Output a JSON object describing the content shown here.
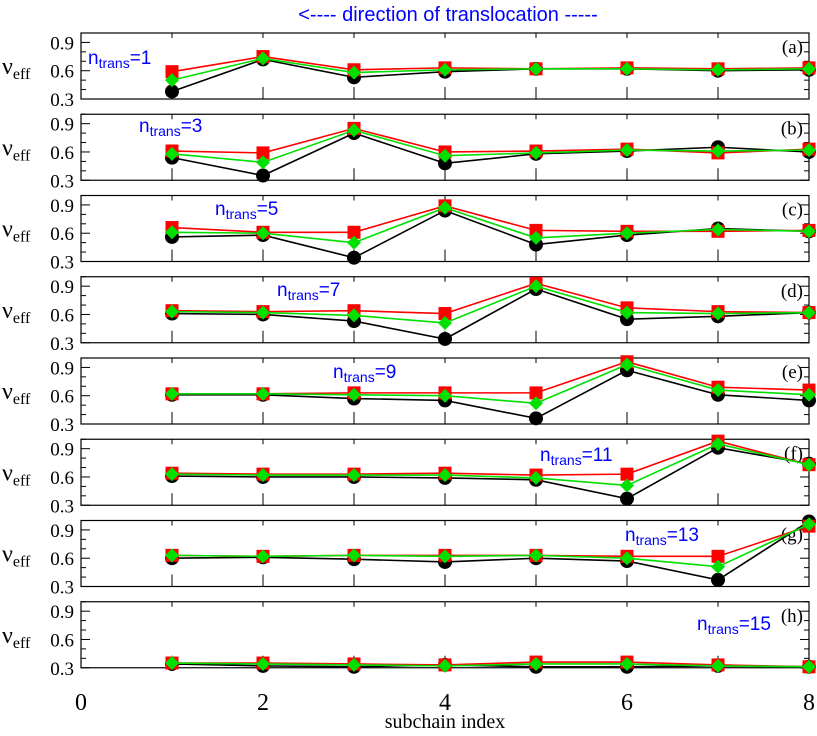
{
  "header_annotation": "<---- direction of translocation -----",
  "xlabel": "subchain index",
  "ylabel_main": "ν",
  "ylabel_sub": "eff",
  "ntrans_main": "n",
  "ntrans_sub": "trans",
  "colors": {
    "red_series": "#ff0000",
    "green_series": "#00e000",
    "black_series": "#000000",
    "annotation": "#0000ff",
    "axis": "#000000"
  },
  "chart_data": {
    "type": "line",
    "xlim": [
      0,
      8
    ],
    "x_ticks": [
      "0",
      "2",
      "4",
      "6",
      "8"
    ],
    "ylim": [
      0.3,
      1.0
    ],
    "y_ticks": [
      "0.3",
      "0.6",
      "0.9"
    ],
    "grid": false,
    "legend": "none",
    "x": [
      1,
      2,
      3,
      4,
      5,
      6,
      7,
      8
    ],
    "panels": [
      {
        "label": "(a)",
        "ntrans": "=1",
        "red": [
          0.59,
          0.75,
          0.61,
          0.63,
          0.62,
          0.63,
          0.62,
          0.63
        ],
        "green": [
          0.5,
          0.73,
          0.58,
          0.61,
          0.62,
          0.62,
          0.61,
          0.62
        ],
        "black": [
          0.38,
          0.72,
          0.53,
          0.59,
          0.62,
          0.62,
          0.6,
          0.61
        ]
      },
      {
        "label": "(b)",
        "ntrans": "=3",
        "red": [
          0.61,
          0.59,
          0.85,
          0.6,
          0.61,
          0.63,
          0.59,
          0.63
        ],
        "green": [
          0.58,
          0.49,
          0.83,
          0.56,
          0.59,
          0.62,
          0.61,
          0.62
        ],
        "black": [
          0.54,
          0.35,
          0.8,
          0.48,
          0.58,
          0.61,
          0.65,
          0.6
        ]
      },
      {
        "label": "(c)",
        "ntrans": "=5",
        "red": [
          0.66,
          0.61,
          0.61,
          0.89,
          0.63,
          0.62,
          0.62,
          0.63
        ],
        "green": [
          0.61,
          0.6,
          0.5,
          0.87,
          0.55,
          0.6,
          0.64,
          0.62
        ],
        "black": [
          0.56,
          0.58,
          0.34,
          0.84,
          0.48,
          0.58,
          0.65,
          0.62
        ]
      },
      {
        "label": "(d)",
        "ntrans": "=7",
        "red": [
          0.64,
          0.63,
          0.64,
          0.61,
          0.93,
          0.67,
          0.63,
          0.62
        ],
        "green": [
          0.63,
          0.62,
          0.59,
          0.51,
          0.9,
          0.62,
          0.61,
          0.62
        ],
        "black": [
          0.61,
          0.6,
          0.53,
          0.34,
          0.87,
          0.55,
          0.58,
          0.62
        ]
      },
      {
        "label": "(e)",
        "ntrans": "=9",
        "red": [
          0.62,
          0.62,
          0.63,
          0.63,
          0.63,
          0.96,
          0.69,
          0.66
        ],
        "green": [
          0.62,
          0.62,
          0.61,
          0.6,
          0.52,
          0.93,
          0.66,
          0.61
        ],
        "black": [
          0.61,
          0.61,
          0.57,
          0.55,
          0.36,
          0.87,
          0.61,
          0.55
        ]
      },
      {
        "label": "(f)",
        "ntrans": "=11",
        "red": [
          0.64,
          0.63,
          0.63,
          0.64,
          0.62,
          0.63,
          0.98,
          0.73
        ],
        "green": [
          0.63,
          0.62,
          0.62,
          0.62,
          0.59,
          0.51,
          0.95,
          0.73
        ],
        "black": [
          0.61,
          0.6,
          0.6,
          0.59,
          0.57,
          0.37,
          0.91,
          0.74
        ]
      },
      {
        "label": "(g)",
        "ntrans": "=13",
        "red": [
          0.63,
          0.62,
          0.63,
          0.63,
          0.63,
          0.62,
          0.62,
          0.94
        ],
        "green": [
          0.63,
          0.62,
          0.63,
          0.62,
          0.63,
          0.6,
          0.51,
          0.96
        ],
        "black": [
          0.6,
          0.61,
          0.59,
          0.56,
          0.6,
          0.57,
          0.37,
          0.99
        ]
      },
      {
        "label": "(h)",
        "ntrans": "=15",
        "red": [
          0.35,
          0.35,
          0.34,
          0.33,
          0.36,
          0.36,
          0.33,
          0.31
        ],
        "green": [
          0.35,
          0.34,
          0.33,
          0.32,
          0.34,
          0.34,
          0.32,
          0.31
        ],
        "black": [
          0.34,
          0.32,
          0.31,
          0.33,
          0.31,
          0.31,
          0.32,
          0.31
        ]
      }
    ]
  }
}
